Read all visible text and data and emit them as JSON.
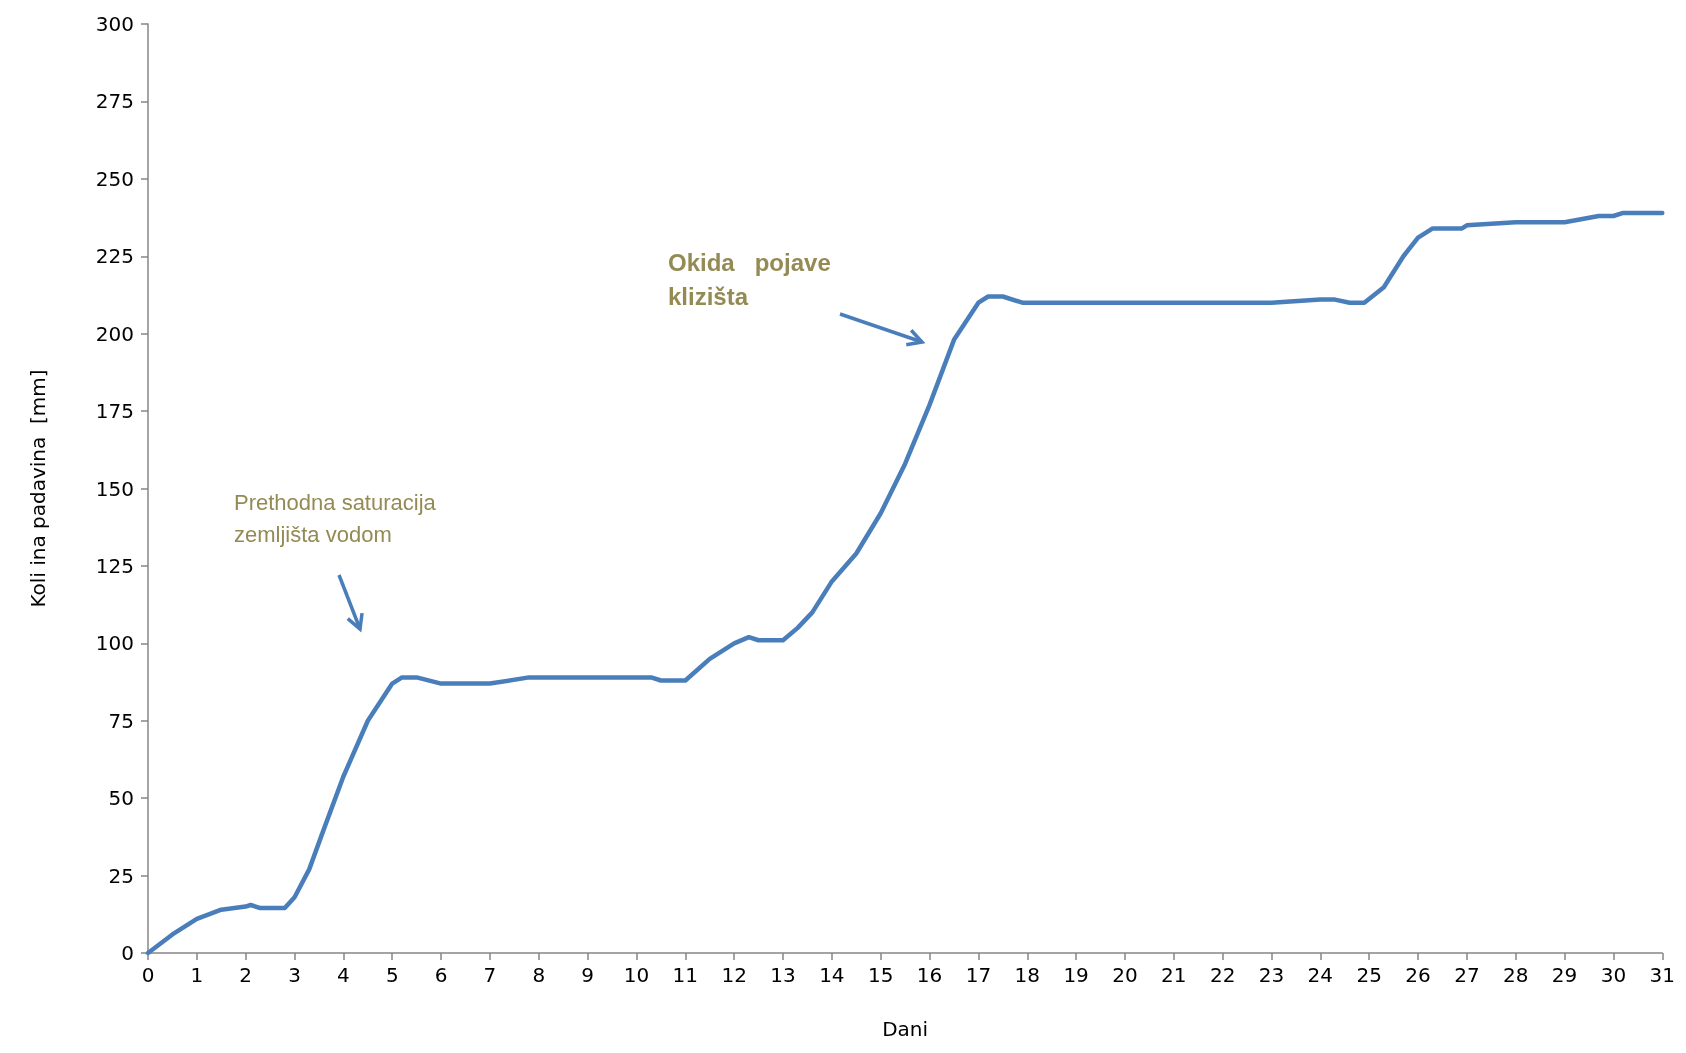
{
  "chart_data": {
    "type": "line",
    "xlabel": "Dani",
    "ylabel": "Koli ina padavina  [mm]",
    "annotations": [
      "Prethodna saturacija\nzemljišta vodom",
      "Okida   pojave\nklizišta"
    ],
    "xlim": [
      0,
      31
    ],
    "xticks": [
      0,
      1,
      2,
      3,
      4,
      5,
      6,
      7,
      8,
      9,
      10,
      11,
      12,
      13,
      14,
      15,
      16,
      17,
      18,
      19,
      20,
      21,
      22,
      23,
      24,
      25,
      26,
      27,
      28,
      29,
      30,
      31
    ],
    "ylim": [
      0,
      300
    ],
    "yticks": [
      0,
      25,
      50,
      75,
      100,
      125,
      150,
      175,
      200,
      225,
      250,
      275,
      300
    ],
    "grid": false,
    "marker": "none",
    "line_style": "solid",
    "series": [
      {
        "color": "#4a7ebb",
        "x": [
          0,
          0.5,
          1,
          1.5,
          2,
          2.1,
          2.3,
          2.8,
          3,
          3.3,
          3.6,
          4,
          4.5,
          5,
          5.2,
          5.5,
          6,
          7,
          7.8,
          10.3,
          10.5,
          11,
          11.5,
          12,
          12.3,
          12.5,
          13,
          13.3,
          13.6,
          14,
          14.5,
          15,
          15.5,
          16,
          16.5,
          17,
          17.2,
          17.5,
          17.9,
          23,
          24,
          24.3,
          24.6,
          24.9,
          25.3,
          25.7,
          26,
          26.3,
          26.9,
          27,
          28,
          29,
          29.7,
          30,
          30.2,
          31
        ],
        "values": [
          0,
          6,
          11,
          14,
          15,
          15.5,
          14.5,
          14.5,
          18,
          27,
          40,
          57,
          75,
          87,
          89,
          89,
          87,
          87,
          89,
          89,
          88,
          88,
          95,
          100,
          102,
          101,
          101,
          105,
          110,
          120,
          129,
          142,
          158,
          177,
          198,
          210,
          212,
          212,
          210,
          210,
          211,
          211,
          210,
          210,
          215,
          225,
          231,
          234,
          234,
          235,
          236,
          236,
          238,
          238,
          239,
          239
        ]
      }
    ]
  }
}
